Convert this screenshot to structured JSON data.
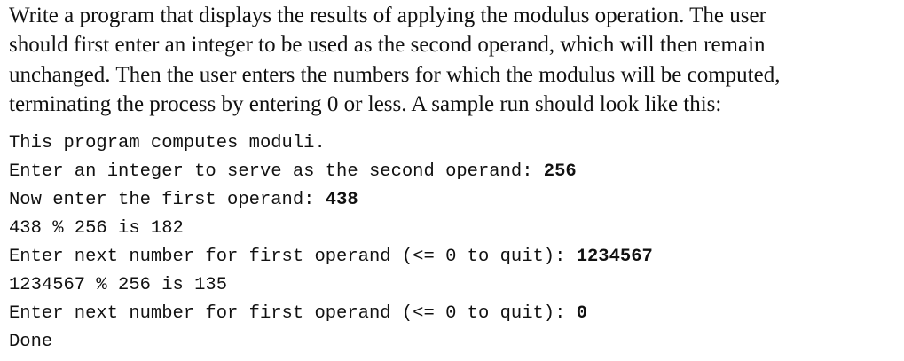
{
  "intro": {
    "lines": [
      "Write a program that displays the results of applying the modulus operation. The user",
      "should first enter an integer to be used as the second operand, which will then remain",
      "unchanged. Then the user enters the numbers for which the modulus will be computed,",
      "terminating the process by entering 0 or less. A sample run should look like this:"
    ]
  },
  "sample_run": {
    "lines": [
      {
        "text": "This program computes moduli."
      },
      {
        "text": "Enter an integer to serve as the second operand:",
        "input": "256"
      },
      {
        "text": "Now enter the first operand:",
        "input": "438"
      },
      {
        "text": "438 % 256 is 182"
      },
      {
        "text": "Enter next number for first operand (<= 0 to quit):",
        "input": "1234567"
      },
      {
        "text": "1234567 % 256 is 135"
      },
      {
        "text": "Enter next number for first operand (<= 0 to quit):",
        "input": "0"
      },
      {
        "text": "Done"
      }
    ]
  }
}
